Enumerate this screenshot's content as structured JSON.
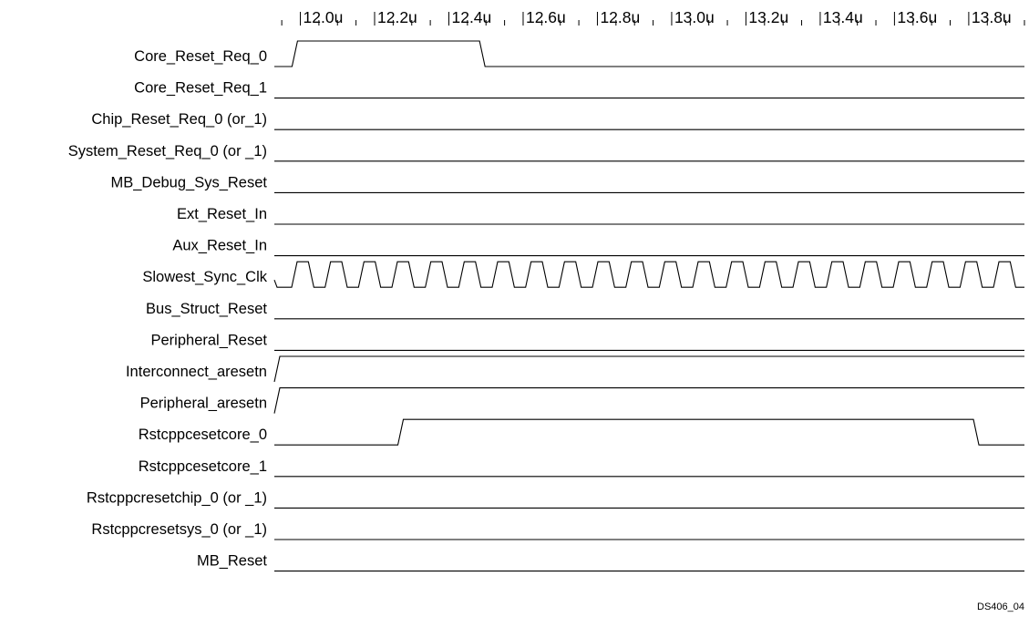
{
  "figure_id": "DS406_04",
  "time_axis": {
    "unit": "u",
    "labels": [
      "12.0u",
      "12.2u",
      "12.4u",
      "12.6u",
      "12.8u",
      "13.0u",
      "13.2u",
      "13.4u",
      "13.6u",
      "13.8u"
    ],
    "start": 11.93,
    "end": 13.95
  },
  "signals": [
    {
      "name": "Core_Reset_Req_0",
      "kind": "pulse",
      "initial": 0,
      "edges": [
        11.985,
        12.49
      ]
    },
    {
      "name": "Core_Reset_Req_1",
      "kind": "level",
      "initial": 0,
      "edges": []
    },
    {
      "name": "Chip_Reset_Req_0 (or_1)",
      "kind": "level",
      "initial": 0,
      "edges": []
    },
    {
      "name": "System_Reset_Req_0 (or _1)",
      "kind": "level",
      "initial": 0,
      "edges": []
    },
    {
      "name": "MB_Debug_Sys_Reset",
      "kind": "level",
      "initial": 0,
      "edges": []
    },
    {
      "name": "Ext_Reset_In",
      "kind": "level",
      "initial": 0,
      "edges": []
    },
    {
      "name": "Aux_Reset_In",
      "kind": "level",
      "initial": 0,
      "edges": []
    },
    {
      "name": "Slowest_Sync_Clk",
      "kind": "clock",
      "period": 0.09,
      "phase": 11.93
    },
    {
      "name": "Bus_Struct_Reset",
      "kind": "level",
      "initial": 0,
      "edges": []
    },
    {
      "name": "Peripheral_Reset",
      "kind": "level",
      "initial": 0,
      "edges": []
    },
    {
      "name": "Interconnect_aresetn",
      "kind": "level",
      "initial": 0,
      "edges": [
        11.93
      ]
    },
    {
      "name": "Peripheral_aresetn",
      "kind": "level",
      "initial": 0,
      "edges": [
        11.93
      ]
    },
    {
      "name": "Rstcppcesetcore_0",
      "kind": "pulse",
      "initial": 0,
      "edges": [
        12.27,
        13.82
      ]
    },
    {
      "name": "Rstcppcesetcore_1",
      "kind": "level",
      "initial": 0,
      "edges": []
    },
    {
      "name": "Rstcppcresetchip_0 (or _1)",
      "kind": "level",
      "initial": 0,
      "edges": []
    },
    {
      "name": "Rstcppcresetsys_0 (or _1)",
      "kind": "level",
      "initial": 0,
      "edges": []
    },
    {
      "name": "MB_Reset",
      "kind": "level",
      "initial": 0,
      "edges": []
    }
  ]
}
